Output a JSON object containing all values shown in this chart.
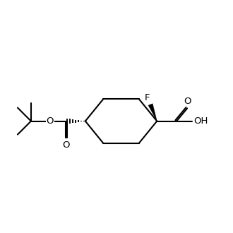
{
  "background_color": "#ffffff",
  "line_color": "#000000",
  "line_width": 1.5,
  "font_size": 9.5,
  "figsize": [
    3.3,
    3.3
  ],
  "dpi": 100,
  "xlim": [
    0.0,
    10.0
  ],
  "ylim": [
    1.5,
    8.5
  ]
}
